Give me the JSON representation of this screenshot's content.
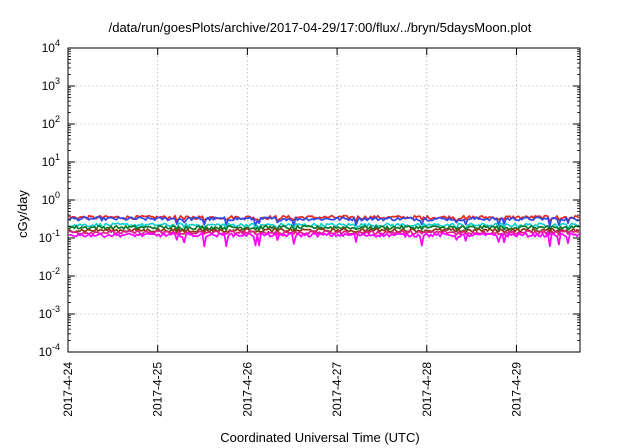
{
  "chart_data": {
    "type": "line",
    "title": "/data/run/goesPlots/archive/2017-04-29/17:00/flux/../bryn/5daysMoon.plot",
    "xlabel": "Coordinated Universal Time (UTC)",
    "ylabel": "cGy/day",
    "yscale": "log",
    "ylim": [
      0.0001,
      10000
    ],
    "ytick_labels": [
      {
        "base": "10",
        "exp": "-4",
        "value": 0.0001
      },
      {
        "base": "10",
        "exp": "-3",
        "value": 0.001
      },
      {
        "base": "10",
        "exp": "-2",
        "value": 0.01
      },
      {
        "base": "10",
        "exp": "-1",
        "value": 0.1
      },
      {
        "base": "10",
        "exp": "0",
        "value": 1
      },
      {
        "base": "10",
        "exp": "1",
        "value": 10
      },
      {
        "base": "10",
        "exp": "2",
        "value": 100
      },
      {
        "base": "10",
        "exp": "3",
        "value": 1000
      },
      {
        "base": "10",
        "exp": "4",
        "value": 10000
      }
    ],
    "xlim": [
      "2017-04-24",
      "2017-04-29 17:00"
    ],
    "xtick_labels": [
      "2017-4-24",
      "2017-4-25",
      "2017-4-26",
      "2017-4-27",
      "2017-4-28",
      "2017-4-29"
    ],
    "grid": true,
    "series": [
      {
        "color": "#e8271e",
        "level": 0.35,
        "dips": [
          0.26,
          0.31
        ]
      },
      {
        "color": "#2f49e6",
        "level": 0.32,
        "dips": [
          0.2,
          0.26
        ]
      },
      {
        "color": "#11cfd0",
        "level": 0.22,
        "dips": [
          0.17,
          0.19
        ]
      },
      {
        "color": "#0c7a2b",
        "level": 0.19,
        "dips": [
          0.16,
          0.17
        ]
      },
      {
        "color": "#8a3a14",
        "level": 0.16,
        "dips": [
          0.14,
          0.15
        ]
      },
      {
        "color": "#e21f8e",
        "level": 0.14,
        "dips": [
          0.12,
          0.13
        ]
      },
      {
        "color": "#ff00ff",
        "level": 0.12,
        "dips": [
          0.06,
          0.09
        ]
      }
    ]
  }
}
